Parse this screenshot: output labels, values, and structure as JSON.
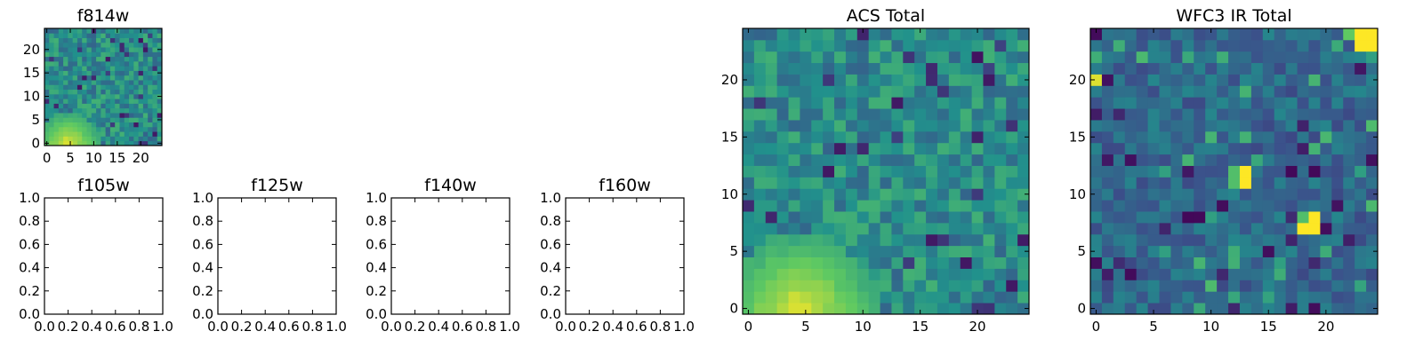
{
  "figure": {
    "colormap": [
      "#440154",
      "#3b528b",
      "#21918c",
      "#5ec962",
      "#fde725"
    ]
  },
  "chart_data": [
    {
      "id": "f814w",
      "type": "heatmap",
      "title": "f814w",
      "grid_size": 25,
      "xlim": [
        -0.5,
        24.5
      ],
      "ylim": [
        -0.5,
        24.5
      ],
      "x_ticks": [
        0,
        5,
        10,
        15,
        20
      ],
      "y_ticks": [
        0,
        5,
        10,
        15,
        20
      ],
      "x_tick_labels": [
        "0",
        "5",
        "10",
        "15",
        "20"
      ],
      "y_tick_labels": [
        "0",
        "5",
        "10",
        "15",
        "20"
      ],
      "pattern": "acs",
      "seed": 11
    },
    {
      "id": "f105w",
      "type": "empty",
      "title": "f105w",
      "xlim": [
        0,
        1
      ],
      "ylim": [
        0,
        1
      ],
      "x_ticks": [
        0,
        0.2,
        0.4,
        0.6,
        0.8,
        1.0
      ],
      "y_ticks": [
        0,
        0.2,
        0.4,
        0.6,
        0.8,
        1.0
      ],
      "x_tick_labels": [
        "0.0",
        "0.2",
        "0.4",
        "0.6",
        "0.8",
        "1.0"
      ],
      "y_tick_labels": [
        "0.0",
        "0.2",
        "0.4",
        "0.6",
        "0.8",
        "1.0"
      ]
    },
    {
      "id": "f125w",
      "type": "empty",
      "title": "f125w",
      "xlim": [
        0,
        1
      ],
      "ylim": [
        0,
        1
      ],
      "x_ticks": [
        0,
        0.2,
        0.4,
        0.6,
        0.8,
        1.0
      ],
      "y_ticks": [
        0,
        0.2,
        0.4,
        0.6,
        0.8,
        1.0
      ],
      "x_tick_labels": [
        "0.0",
        "0.2",
        "0.4",
        "0.6",
        "0.8",
        "1.0"
      ],
      "y_tick_labels": [
        "0.0",
        "0.2",
        "0.4",
        "0.6",
        "0.8",
        "1.0"
      ]
    },
    {
      "id": "f140w",
      "type": "empty",
      "title": "f140w",
      "xlim": [
        0,
        1
      ],
      "ylim": [
        0,
        1
      ],
      "x_ticks": [
        0,
        0.2,
        0.4,
        0.6,
        0.8,
        1.0
      ],
      "y_ticks": [
        0,
        0.2,
        0.4,
        0.6,
        0.8,
        1.0
      ],
      "x_tick_labels": [
        "0.0",
        "0.2",
        "0.4",
        "0.6",
        "0.8",
        "1.0"
      ],
      "y_tick_labels": [
        "0.0",
        "0.2",
        "0.4",
        "0.6",
        "0.8",
        "1.0"
      ]
    },
    {
      "id": "f160w",
      "type": "empty",
      "title": "f160w",
      "xlim": [
        0,
        1
      ],
      "ylim": [
        0,
        1
      ],
      "x_ticks": [
        0,
        0.2,
        0.4,
        0.6,
        0.8,
        1.0
      ],
      "y_ticks": [
        0,
        0.2,
        0.4,
        0.6,
        0.8,
        1.0
      ],
      "x_tick_labels": [
        "0.0",
        "0.2",
        "0.4",
        "0.6",
        "0.8",
        "1.0"
      ],
      "y_tick_labels": [
        "0.0",
        "0.2",
        "0.4",
        "0.6",
        "0.8",
        "1.0"
      ]
    },
    {
      "id": "acs-total",
      "type": "heatmap",
      "title": "ACS Total",
      "grid_size": 25,
      "xlim": [
        -0.5,
        24.5
      ],
      "ylim": [
        -0.5,
        24.5
      ],
      "x_ticks": [
        0,
        5,
        10,
        15,
        20
      ],
      "y_ticks": [
        0,
        5,
        10,
        15,
        20
      ],
      "x_tick_labels": [
        "0",
        "5",
        "10",
        "15",
        "20"
      ],
      "y_tick_labels": [
        "0",
        "5",
        "10",
        "15",
        "20"
      ],
      "pattern": "acs",
      "seed": 11
    },
    {
      "id": "wfc3-ir-total",
      "type": "heatmap",
      "title": "WFC3 IR Total",
      "grid_size": 25,
      "xlim": [
        -0.5,
        24.5
      ],
      "ylim": [
        -0.5,
        24.5
      ],
      "x_ticks": [
        0,
        5,
        10,
        15,
        20
      ],
      "y_ticks": [
        0,
        5,
        10,
        15,
        20
      ],
      "x_tick_labels": [
        "0",
        "5",
        "10",
        "15",
        "20"
      ],
      "y_tick_labels": [
        "0",
        "5",
        "10",
        "15",
        "20"
      ],
      "pattern": "wfc3",
      "seed": 29,
      "hot_pixels": [
        {
          "x": 23,
          "y": 24,
          "v": 1.0
        },
        {
          "x": 24,
          "y": 24,
          "v": 1.0
        },
        {
          "x": 23,
          "y": 23,
          "v": 1.0
        },
        {
          "x": 24,
          "y": 23,
          "v": 1.0
        },
        {
          "x": 22,
          "y": 24,
          "v": 0.75
        },
        {
          "x": 0,
          "y": 20,
          "v": 0.95
        },
        {
          "x": 13,
          "y": 12,
          "v": 1.0
        },
        {
          "x": 13,
          "y": 11,
          "v": 1.0
        },
        {
          "x": 12,
          "y": 12,
          "v": 0.7
        },
        {
          "x": 12,
          "y": 11,
          "v": 0.7
        },
        {
          "x": 19,
          "y": 8,
          "v": 1.0
        },
        {
          "x": 19,
          "y": 7,
          "v": 1.0
        },
        {
          "x": 18,
          "y": 7,
          "v": 1.0
        },
        {
          "x": 18,
          "y": 8,
          "v": 0.7
        }
      ]
    }
  ]
}
